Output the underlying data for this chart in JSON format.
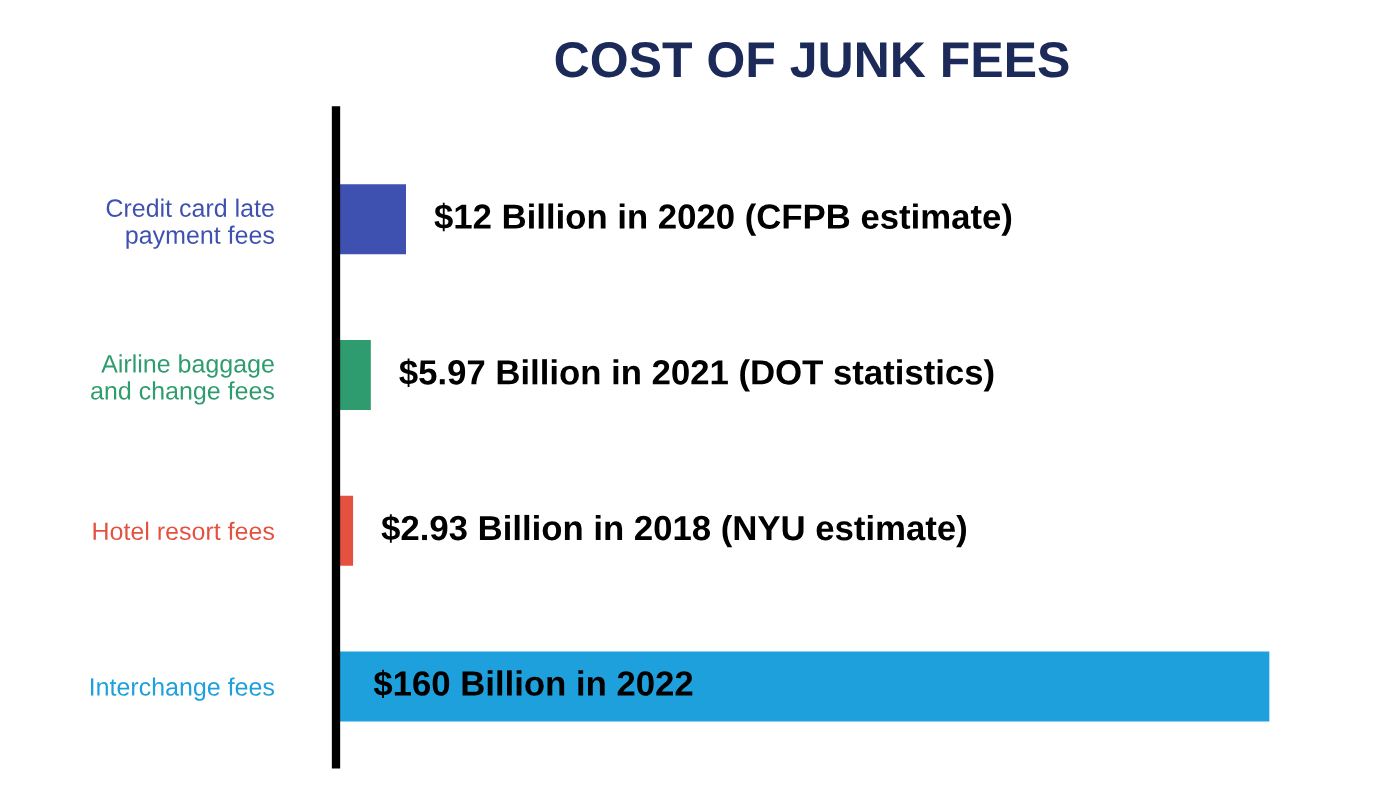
{
  "chart_data": {
    "type": "bar",
    "orientation": "horizontal",
    "title": "COST OF JUNK FEES",
    "categories": [
      "Credit card late\npayment fees",
      "Airline baggage\nand change fees",
      "Hotel resort fees",
      "Interchange fees"
    ],
    "values": [
      12,
      5.97,
      2.93,
      160
    ],
    "colors": [
      "#3f51b0",
      "#2e9c6e",
      "#e4513f",
      "#1ea0dc"
    ],
    "value_labels": [
      "$12 Billion in 2020 (CFPB estimate)",
      "$5.97 Billion in 2021 (DOT statistics)",
      "$2.93 Billion in 2018 (NYU estimate)",
      "$160 Billion in 2022"
    ]
  }
}
